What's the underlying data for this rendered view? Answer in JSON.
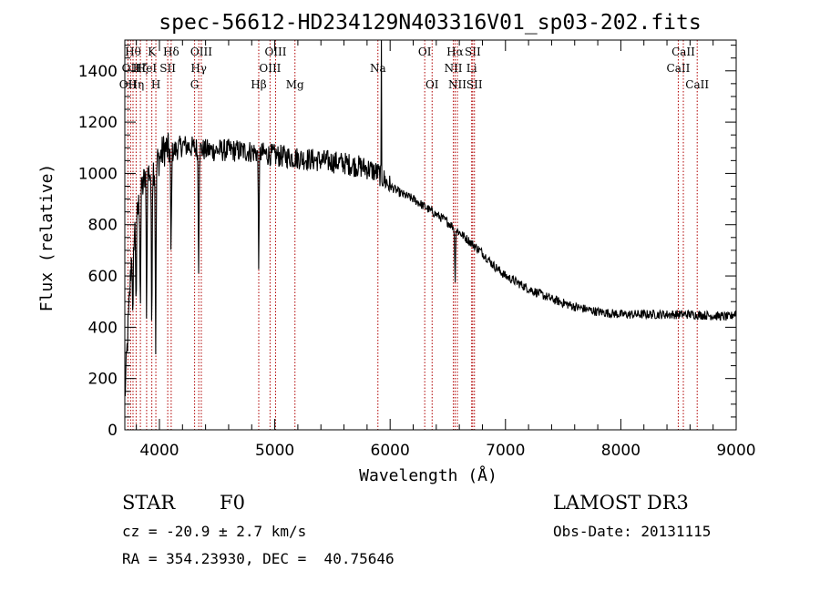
{
  "chart_data": {
    "type": "line",
    "title": "spec-56612-HD234129N403316V01_sp03-202.fits",
    "xlabel": "Wavelength (Å)",
    "ylabel": "Flux (relative)",
    "xlim": [
      3700,
      9000
    ],
    "ylim": [
      0,
      1520
    ],
    "xticks": [
      4000,
      5000,
      6000,
      7000,
      8000,
      9000
    ],
    "yticks": [
      0,
      200,
      400,
      600,
      800,
      1000,
      1200,
      1400
    ],
    "series": [
      {
        "name": "spectrum",
        "continuum_x": [
          3700,
          3760,
          3800,
          3850,
          3900,
          3950,
          4000,
          4050,
          4100,
          4200,
          4300,
          4400,
          4600,
          4800,
          5000,
          5200,
          5400,
          5600,
          5800,
          5900,
          6000,
          6100,
          6200,
          6300,
          6400,
          6500,
          6600,
          6700,
          6800,
          6900,
          7000,
          7200,
          7400,
          7600,
          7800,
          8000,
          8200,
          8400,
          8600,
          8800,
          8950,
          9000
        ],
        "continuum_y": [
          120,
          700,
          820,
          950,
          1000,
          1020,
          1060,
          1100,
          1080,
          1110,
          1100,
          1090,
          1090,
          1085,
          1070,
          1060,
          1050,
          1040,
          1020,
          1000,
          950,
          920,
          900,
          870,
          840,
          810,
          770,
          730,
          690,
          640,
          600,
          550,
          510,
          480,
          460,
          450,
          450,
          450,
          450,
          445,
          440,
          460
        ],
        "noise_amplitude": [
          {
            "from": 3700,
            "to": 4100,
            "amp": 70
          },
          {
            "from": 4100,
            "to": 6000,
            "amp": 45
          },
          {
            "from": 6000,
            "to": 9000,
            "amp": 18
          }
        ],
        "absorption_dips": [
          {
            "wavelength": 3770,
            "depth": 350
          },
          {
            "wavelength": 3798,
            "depth": 300
          },
          {
            "wavelength": 3835,
            "depth": 420
          },
          {
            "wavelength": 3889,
            "depth": 520
          },
          {
            "wavelength": 3933,
            "depth": 600
          },
          {
            "wavelength": 3968,
            "depth": 700
          },
          {
            "wavelength": 4101,
            "depth": 400
          },
          {
            "wavelength": 4340,
            "depth": 450
          },
          {
            "wavelength": 4861,
            "depth": 430
          },
          {
            "wavelength": 6563,
            "depth": 200
          }
        ],
        "spikes": [
          {
            "wavelength": 5923,
            "height": 1520
          }
        ]
      }
    ],
    "spectral_lines": [
      {
        "wavelength": 3727,
        "label": "OII",
        "row": 2
      },
      {
        "wavelength": 3750,
        "label": "OII",
        "row": 1
      },
      {
        "wavelength": 3771,
        "label": "Hθ",
        "row": 0
      },
      {
        "wavelength": 3798,
        "label": "Hη",
        "row": 2
      },
      {
        "wavelength": 3835,
        "label": "Hζ",
        "row": 1
      },
      {
        "wavelength": 3889,
        "label": "HeI",
        "row": 1
      },
      {
        "wavelength": 3934,
        "label": "K",
        "row": 0
      },
      {
        "wavelength": 3969,
        "label": "H",
        "row": 2
      },
      {
        "wavelength": 4072,
        "label": "SII",
        "row": 1
      },
      {
        "wavelength": 4102,
        "label": "Hδ",
        "row": 0
      },
      {
        "wavelength": 4305,
        "label": "G",
        "row": 2
      },
      {
        "wavelength": 4341,
        "label": "Hγ",
        "row": 1
      },
      {
        "wavelength": 4363,
        "label": "OIII",
        "row": 0
      },
      {
        "wavelength": 4861,
        "label": "Hβ",
        "row": 2
      },
      {
        "wavelength": 4959,
        "label": "OIII",
        "row": 1
      },
      {
        "wavelength": 5007,
        "label": "OIII",
        "row": 0
      },
      {
        "wavelength": 5175,
        "label": "Mg",
        "row": 2
      },
      {
        "wavelength": 5894,
        "label": "Na",
        "row": 1
      },
      {
        "wavelength": 6300,
        "label": "OI",
        "row": 0
      },
      {
        "wavelength": 6364,
        "label": "OI",
        "row": 2
      },
      {
        "wavelength": 6548,
        "label": "NII",
        "row": 1
      },
      {
        "wavelength": 6563,
        "label": "Hα",
        "row": 0
      },
      {
        "wavelength": 6583,
        "label": "NII",
        "row": 2
      },
      {
        "wavelength": 6707,
        "label": "Li",
        "row": 1
      },
      {
        "wavelength": 6716,
        "label": "SII",
        "row": 0
      },
      {
        "wavelength": 6731,
        "label": "SII",
        "row": 2
      },
      {
        "wavelength": 8498,
        "label": "CaII",
        "row": 1
      },
      {
        "wavelength": 8542,
        "label": "CaII",
        "row": 0
      },
      {
        "wavelength": 8662,
        "label": "CaII",
        "row": 2
      }
    ],
    "grid": false,
    "legend": "none"
  },
  "info": {
    "class": "STAR",
    "subclass": "F0",
    "survey": "LAMOST DR3",
    "redshift": "cz = -20.9 ± 2.7 km/s",
    "obs_date": "Obs-Date: 20131115",
    "coords": "RA = 354.23930, DEC =  40.75646"
  },
  "colors": {
    "spectrum": "#000000",
    "line_marker": "#b00000",
    "axis": "#000000"
  }
}
